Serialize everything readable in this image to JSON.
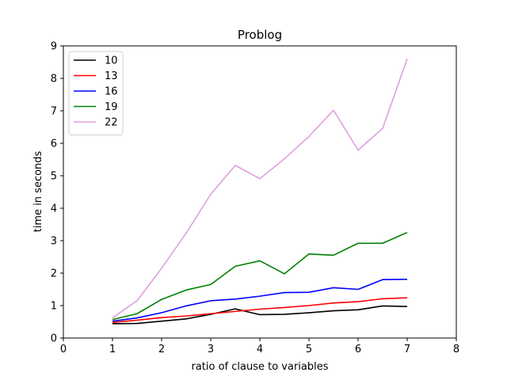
{
  "chart_data": {
    "type": "line",
    "title": "Problog",
    "xlabel": "ratio of clause to variables",
    "ylabel": "time in seconds",
    "xlim": [
      0,
      8
    ],
    "ylim": [
      0,
      9
    ],
    "xticks": [
      0,
      1,
      2,
      3,
      4,
      5,
      6,
      7,
      8
    ],
    "yticks": [
      0,
      1,
      2,
      3,
      4,
      5,
      6,
      7,
      8,
      9
    ],
    "grid": false,
    "legend_position": "top-left",
    "x": [
      1,
      1.5,
      2,
      2.5,
      3,
      3.5,
      4,
      4.5,
      5,
      5.5,
      6,
      6.5,
      7
    ],
    "series": [
      {
        "name": "10",
        "color": "#000000",
        "values": [
          0.44,
          0.45,
          0.52,
          0.59,
          0.73,
          0.9,
          0.72,
          0.73,
          0.78,
          0.84,
          0.87,
          0.99,
          0.97
        ]
      },
      {
        "name": "13",
        "color": "#ff0000",
        "values": [
          0.48,
          0.55,
          0.63,
          0.68,
          0.75,
          0.82,
          0.89,
          0.94,
          1.0,
          1.08,
          1.12,
          1.21,
          1.24
        ]
      },
      {
        "name": "16",
        "color": "#0000ff",
        "values": [
          0.52,
          0.62,
          0.78,
          0.99,
          1.15,
          1.2,
          1.29,
          1.4,
          1.41,
          1.55,
          1.5,
          1.8,
          1.81
        ]
      },
      {
        "name": "19",
        "color": "#008000",
        "values": [
          0.57,
          0.75,
          1.19,
          1.48,
          1.65,
          2.21,
          2.38,
          1.98,
          2.59,
          2.55,
          2.92,
          2.92,
          3.25
        ]
      },
      {
        "name": "22",
        "color": "#dda0dd",
        "values": [
          0.62,
          1.15,
          2.15,
          3.23,
          4.43,
          5.32,
          4.91,
          5.52,
          6.21,
          7.02,
          5.79,
          6.46,
          8.6
        ]
      }
    ]
  }
}
